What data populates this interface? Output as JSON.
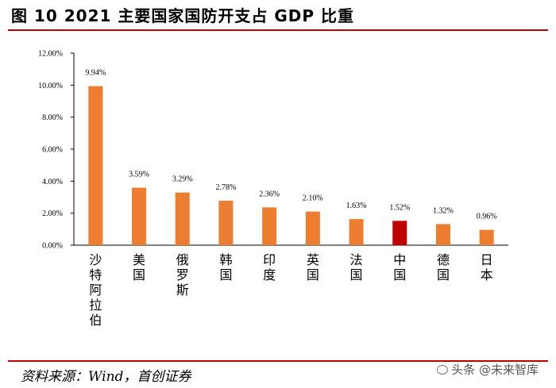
{
  "figure": {
    "title": "图  10 2021 主要国家国防开支占 GDP 比重",
    "source": "资料来源：Wind，首创证券",
    "watermark": "头条 @未来智库"
  },
  "colors": {
    "bar": "#ED7D31",
    "highlight": "#C00000",
    "rule": "#C00000",
    "axis": "#000000"
  },
  "chart_data": {
    "type": "bar",
    "title": "",
    "xlabel": "",
    "ylabel": "",
    "categories": [
      "沙特阿拉伯",
      "美国",
      "俄罗斯",
      "韩国",
      "印度",
      "英国",
      "法国",
      "中国",
      "德国",
      "日本"
    ],
    "values": [
      9.94,
      3.59,
      3.29,
      2.78,
      2.36,
      2.1,
      1.63,
      1.52,
      1.32,
      0.96
    ],
    "data_labels": [
      "9.94%",
      "3.59%",
      "3.29%",
      "2.78%",
      "2.36%",
      "2.10%",
      "1.63%",
      "1.52%",
      "1.32%",
      "0.96%"
    ],
    "highlight_category": "中国",
    "ylim": [
      0,
      12
    ],
    "yticks": [
      0,
      2,
      4,
      6,
      8,
      10,
      12
    ],
    "ytick_labels": [
      "0.00%",
      "2.00%",
      "4.00%",
      "6.00%",
      "8.00%",
      "10.00%",
      "12.00%"
    ],
    "grid": false,
    "legend": "none"
  }
}
